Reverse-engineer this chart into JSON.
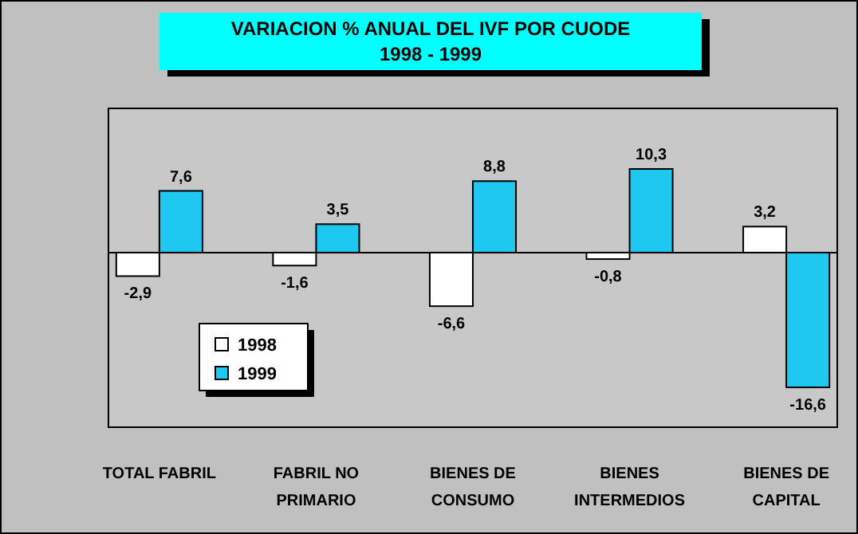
{
  "chart_data": {
    "type": "bar",
    "title": "VARIACION % ANUAL DEL IVF POR CUODE",
    "subtitle": "1998 - 1999",
    "categories": [
      "TOTAL FABRIL",
      "FABRIL NO PRIMARIO",
      "BIENES DE CONSUMO",
      "BIENES INTERMEDIOS",
      "BIENES DE CAPITAL"
    ],
    "series": [
      {
        "name": "1998",
        "color": "#ffffff",
        "values": [
          -2.9,
          -1.6,
          -6.6,
          -0.8,
          3.2
        ],
        "value_labels": [
          "-2,9",
          "-1,6",
          "-6,6",
          "-0,8",
          "3,2"
        ]
      },
      {
        "name": "1999",
        "color": "#1ec8f0",
        "values": [
          7.6,
          3.5,
          8.8,
          10.3,
          -16.6
        ],
        "value_labels": [
          "7,6",
          "3,5",
          "8,8",
          "10,3",
          "-16,6"
        ]
      }
    ],
    "legend": "bottom left",
    "grid": false
  }
}
